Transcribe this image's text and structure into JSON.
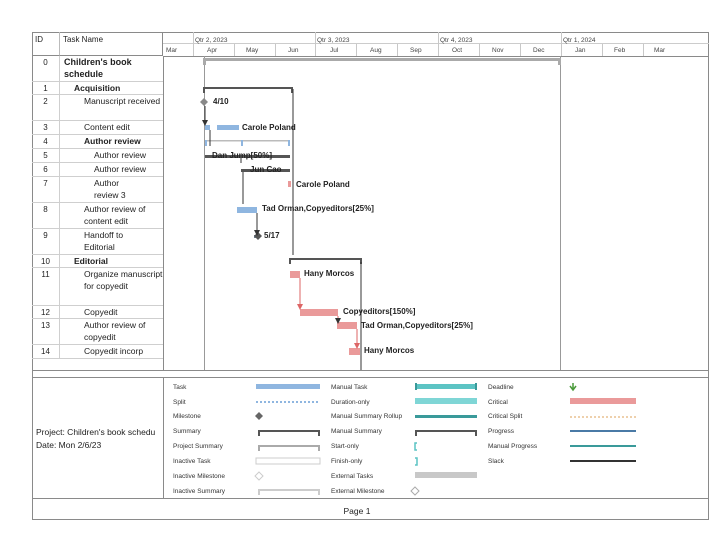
{
  "header": {
    "id_label": "ID",
    "name_label": "Task Name"
  },
  "timescale": {
    "quarters": [
      "Qtr 2, 2023",
      "Qtr 3, 2023",
      "Qtr 4, 2023",
      "Qtr 1, 2024"
    ],
    "months": [
      "Mar",
      "Apr",
      "May",
      "Jun",
      "Jul",
      "Aug",
      "Sep",
      "Oct",
      "Nov",
      "Dec",
      "Jan",
      "Feb",
      "Mar"
    ]
  },
  "tasks": [
    {
      "id": "0",
      "name": "Children's book schedule",
      "bold": true
    },
    {
      "id": "1",
      "name": "Acquisition",
      "bold": true
    },
    {
      "id": "2",
      "name": "Manuscript received",
      "bold": false
    },
    {
      "id": "3",
      "name": "Content edit",
      "bold": false
    },
    {
      "id": "4",
      "name": "Author review",
      "bold": true
    },
    {
      "id": "5",
      "name": "Author review",
      "bold": false
    },
    {
      "id": "6",
      "name": "Author review",
      "bold": false
    },
    {
      "id": "7",
      "name": "Author review 3",
      "bold": false
    },
    {
      "id": "8",
      "name": "Author review of content edit",
      "bold": false
    },
    {
      "id": "9",
      "name": "Handoff to Editorial",
      "bold": false
    },
    {
      "id": "10",
      "name": "Editorial",
      "bold": true
    },
    {
      "id": "11",
      "name": "Organize manuscript for copyedit",
      "bold": false
    },
    {
      "id": "12",
      "name": "Copyedit",
      "bold": false
    },
    {
      "id": "13",
      "name": "Author review of copyedit",
      "bold": false
    },
    {
      "id": "14",
      "name": "Copyedit incorp",
      "bold": false
    }
  ],
  "gantt_labels": {
    "t2": "4/10",
    "t3": "Carole Poland",
    "t5": "Dan Jump[50%]",
    "t6": "Jun Cao",
    "t7": "Carole Poland",
    "t8": "Tad Orman,Copyeditors[25%]",
    "t9": "5/17",
    "t11": "Hany Morcos",
    "t12": "Copyeditors[150%]",
    "t13": "Tad Orman,Copyeditors[25%]",
    "t14": "Hany Morcos"
  },
  "project_info": {
    "project": "Project: Children's book schedu",
    "date": "Date: Mon 2/6/23"
  },
  "legend": {
    "col1": [
      "Task",
      "Split",
      "Milestone",
      "Summary",
      "Project Summary",
      "Inactive Task",
      "Inactive Milestone",
      "Inactive Summary"
    ],
    "col2": [
      "Manual Task",
      "Duration-only",
      "Manual Summary Rollup",
      "Manual Summary",
      "Start-only",
      "Finish-only",
      "External Tasks",
      "External Milestone"
    ],
    "col3": [
      "Deadline",
      "Critical",
      "Critical Split",
      "Progress",
      "Manual Progress",
      "Slack"
    ]
  },
  "footer": {
    "page_label": "Page 1"
  },
  "colors": {
    "task": "#8fb6e0",
    "critical": "#ea9a9a",
    "summary": "#555555",
    "manual": "#5cc4c4"
  }
}
